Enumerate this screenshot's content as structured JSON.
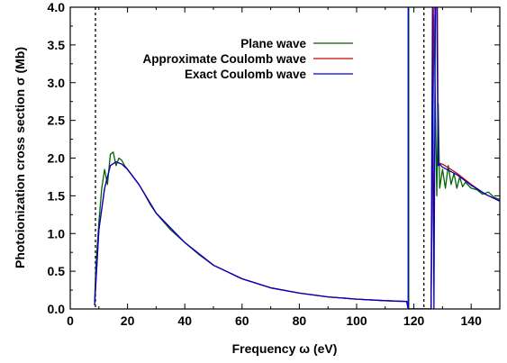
{
  "chart_data": {
    "type": "line",
    "xlabel": "Frequency ω (eV)",
    "ylabel": "Photoionization cross section σ (Mb)",
    "xlim": [
      0,
      150
    ],
    "ylim": [
      0,
      4.0
    ],
    "x_ticks": [
      "0",
      "20",
      "40",
      "60",
      "80",
      "100",
      "120",
      "140"
    ],
    "y_ticks": [
      "0.0",
      "0.5",
      "1.0",
      "1.5",
      "2.0",
      "2.5",
      "3.0",
      "3.5",
      "4.0"
    ],
    "grid": false,
    "legend_position": "top-right",
    "vlines": [
      8.8,
      123.5
    ],
    "series": [
      {
        "name": "Plane wave",
        "color": "#006400",
        "x": [
          8.5,
          9,
          10,
          11,
          12,
          13,
          14,
          15,
          16,
          17,
          18,
          19,
          20,
          22,
          24,
          26,
          28,
          30,
          35,
          40,
          45,
          50,
          60,
          70,
          80,
          90,
          100,
          110,
          115,
          117.5,
          118,
          126,
          127,
          128,
          128.5,
          129,
          130,
          131,
          132,
          133,
          134,
          135,
          136,
          137,
          138,
          140,
          142,
          144,
          146,
          148,
          150
        ],
        "y": [
          0.1,
          0.6,
          1.15,
          1.6,
          1.85,
          1.65,
          2.05,
          2.08,
          1.9,
          2.0,
          1.97,
          1.9,
          1.85,
          1.75,
          1.65,
          1.52,
          1.38,
          1.27,
          1.05,
          0.88,
          0.72,
          0.58,
          0.4,
          0.28,
          0.21,
          0.16,
          0.13,
          0.11,
          0.1,
          0.1,
          0.0,
          0.0,
          3.9,
          1.5,
          2.72,
          1.6,
          1.85,
          1.6,
          1.9,
          1.65,
          1.8,
          1.6,
          1.75,
          1.62,
          1.68,
          1.6,
          1.58,
          1.52,
          1.55,
          1.48,
          1.45
        ]
      },
      {
        "name": "Approximate Coulomb wave",
        "color": "#cc0000",
        "x": [
          8.5,
          10,
          12,
          14,
          16,
          18,
          20,
          24,
          30,
          40,
          50,
          60,
          70,
          80,
          90,
          100,
          110,
          117.5,
          118,
          126,
          127,
          128.2,
          128.5,
          129,
          130,
          135,
          140,
          145,
          150
        ],
        "y": [
          0.05,
          1.05,
          1.6,
          1.9,
          1.95,
          1.92,
          1.85,
          1.65,
          1.27,
          0.88,
          0.58,
          0.4,
          0.28,
          0.21,
          0.16,
          0.13,
          0.11,
          0.1,
          0.0,
          0.0,
          4.0,
          4.0,
          1.95,
          1.93,
          1.92,
          1.8,
          1.65,
          1.52,
          1.43
        ]
      },
      {
        "name": "Exact Coulomb wave",
        "color": "#0000cc",
        "x": [
          8.5,
          10,
          12,
          14,
          16,
          18,
          20,
          24,
          30,
          40,
          50,
          60,
          70,
          80,
          90,
          100,
          110,
          117.5,
          118,
          126,
          126.5,
          127,
          127.5,
          128,
          128.5,
          129,
          130,
          135,
          140,
          145,
          150
        ],
        "y": [
          0.05,
          1.05,
          1.6,
          1.9,
          1.95,
          1.92,
          1.85,
          1.65,
          1.27,
          0.88,
          0.58,
          0.4,
          0.28,
          0.21,
          0.16,
          0.13,
          0.11,
          0.1,
          0.0,
          0.0,
          4.0,
          0.0,
          4.0,
          4.0,
          1.9,
          1.92,
          1.88,
          1.78,
          1.64,
          1.52,
          1.43
        ]
      }
    ],
    "spikes": [
      {
        "series": 0,
        "x": [
          118.2,
          118.2
        ]
      },
      {
        "series": 2,
        "x": [
          118.0,
          118.0
        ]
      }
    ]
  }
}
